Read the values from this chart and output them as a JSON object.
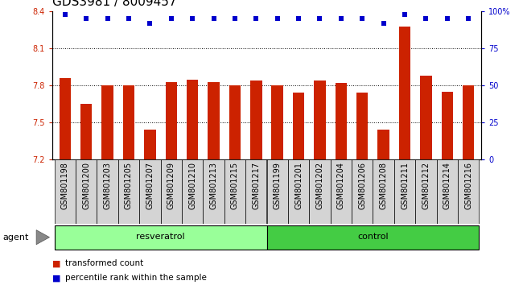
{
  "title": "GDS3981 / 8009457",
  "samples": [
    "GSM801198",
    "GSM801200",
    "GSM801203",
    "GSM801205",
    "GSM801207",
    "GSM801209",
    "GSM801210",
    "GSM801213",
    "GSM801215",
    "GSM801217",
    "GSM801199",
    "GSM801201",
    "GSM801202",
    "GSM801204",
    "GSM801206",
    "GSM801208",
    "GSM801211",
    "GSM801212",
    "GSM801214",
    "GSM801216"
  ],
  "bar_values": [
    7.86,
    7.65,
    7.8,
    7.8,
    7.44,
    7.83,
    7.85,
    7.83,
    7.8,
    7.84,
    7.8,
    7.74,
    7.84,
    7.82,
    7.74,
    7.44,
    8.28,
    7.88,
    7.75,
    7.8
  ],
  "dot_values": [
    98,
    95,
    95,
    95,
    92,
    95,
    95,
    95,
    95,
    95,
    95,
    95,
    95,
    95,
    95,
    92,
    98,
    95,
    95,
    95
  ],
  "resveratrol_count": 10,
  "control_count": 10,
  "ylim_left": [
    7.2,
    8.4
  ],
  "ylim_right": [
    0,
    100
  ],
  "yticks_left": [
    7.2,
    7.5,
    7.8,
    8.1,
    8.4
  ],
  "yticks_right": [
    0,
    25,
    50,
    75,
    100
  ],
  "bar_color": "#cc2200",
  "dot_color": "#0000cc",
  "resveratrol_color": "#99ff99",
  "control_color": "#44cc44",
  "bar_bottom": 7.2,
  "agent_label": "agent",
  "resveratrol_label": "resveratrol",
  "control_label": "control",
  "legend_bar_label": "transformed count",
  "legend_dot_label": "percentile rank within the sample",
  "left_axis_color": "#cc2200",
  "right_axis_color": "#0000cc",
  "title_fontsize": 11,
  "tick_fontsize": 7,
  "label_fontsize": 8,
  "bar_width": 0.55
}
